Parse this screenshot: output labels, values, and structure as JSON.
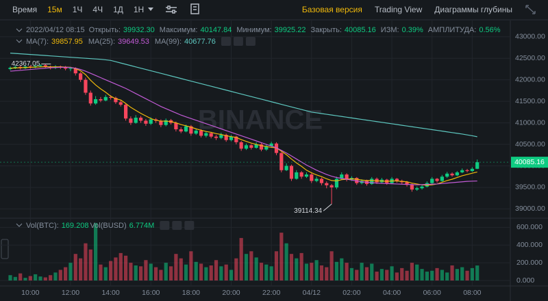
{
  "toolbar": {
    "intervals": [
      "Время",
      "15м",
      "1Ч",
      "4Ч",
      "1Д",
      "1Н"
    ],
    "views": [
      "Базовая версия",
      "Trading View",
      "Диаграммы глубины"
    ]
  },
  "chart_data": {
    "type": "candlestick",
    "header": {
      "date": "2022/04/12 08:15",
      "fields": [
        {
          "label": "Открыть:",
          "value": "39932.30"
        },
        {
          "label": "Максимум:",
          "value": "40147.84"
        },
        {
          "label": "Минимум:",
          "value": "39925.22"
        },
        {
          "label": "Закрыть:",
          "value": "40085.16"
        },
        {
          "label": "ИЗМ:",
          "value": "0.39%"
        },
        {
          "label": "АМПЛИТУДА:",
          "value": "0.56%"
        }
      ]
    },
    "watermark": "BINANCE",
    "categories": [
      null,
      null,
      null,
      null,
      "10:00",
      null,
      null,
      null,
      null,
      null,
      null,
      null,
      "12:00",
      null,
      null,
      null,
      null,
      null,
      null,
      null,
      "14:00",
      null,
      null,
      null,
      null,
      null,
      null,
      null,
      "16:00",
      null,
      null,
      null,
      null,
      null,
      null,
      null,
      "18:00",
      null,
      null,
      null,
      null,
      null,
      null,
      null,
      "20:00",
      null,
      null,
      null,
      null,
      null,
      null,
      null,
      "22:00",
      null,
      null,
      null,
      null,
      null,
      null,
      null,
      "04/12",
      null,
      null,
      null,
      null,
      null,
      null,
      null,
      "02:00",
      null,
      null,
      null,
      null,
      null,
      null,
      null,
      "04:00",
      null,
      null,
      null,
      null,
      null,
      null,
      null,
      "06:00",
      null,
      null,
      null,
      null,
      null,
      null,
      null,
      "08:00",
      null
    ],
    "open": [
      42250,
      42280,
      42300,
      42270,
      42310,
      42290,
      42320,
      42340,
      42300,
      42280,
      42310,
      42290,
      42260,
      42270,
      42150,
      42000,
      41700,
      41450,
      41550,
      41520,
      41600,
      41580,
      41480,
      41420,
      41100,
      41000,
      41120,
      41050,
      40980,
      41080,
      41050,
      40950,
      41060,
      41000,
      40850,
      40800,
      40920,
      40750,
      40820,
      40700,
      40760,
      40680,
      40650,
      40720,
      40600,
      40680,
      40550,
      40400,
      40480,
      40420,
      40500,
      40380,
      40460,
      40520,
      40300,
      39900,
      40000,
      39700,
      39850,
      39750,
      39800,
      39650,
      39700,
      39600,
      39550,
      39500,
      39700,
      39800,
      39680,
      39720,
      39600,
      39650,
      39580,
      39700,
      39620,
      39680,
      39600,
      39700,
      39650,
      39620,
      39560,
      39450,
      39480,
      39520,
      39600,
      39700,
      39650,
      39750,
      39820,
      39780,
      39850,
      39900,
      39880,
      39932.3
    ],
    "high": [
      42310,
      42330,
      42330,
      42340,
      42340,
      42350,
      42360,
      42367.05,
      42330,
      42340,
      42330,
      42320,
      42300,
      42290,
      42180,
      42050,
      41750,
      41620,
      41600,
      41650,
      41640,
      41610,
      41520,
      41450,
      41150,
      41180,
      41160,
      41090,
      41130,
      41110,
      41080,
      41100,
      41090,
      41030,
      40900,
      40960,
      40950,
      40870,
      40850,
      40800,
      40790,
      40720,
      40770,
      40750,
      40720,
      40700,
      40580,
      40520,
      40510,
      40550,
      40530,
      40500,
      40560,
      40550,
      40320,
      40060,
      40030,
      39900,
      39880,
      39850,
      39830,
      39750,
      39730,
      39640,
      39580,
      39750,
      39850,
      39830,
      39760,
      39740,
      39690,
      39680,
      39740,
      39730,
      39720,
      39700,
      39740,
      39720,
      39680,
      39650,
      39590,
      39520,
      39560,
      39640,
      39740,
      39720,
      39790,
      39860,
      39850,
      39880,
      39940,
      39930,
      39970,
      40147.84
    ],
    "low": [
      42220,
      42250,
      42240,
      42250,
      42260,
      42270,
      42290,
      42270,
      42240,
      42250,
      42250,
      42220,
      42200,
      42100,
      41950,
      41650,
      41400,
      41420,
      41480,
      41500,
      41540,
      41440,
      41380,
      41050,
      40950,
      40980,
      41000,
      40930,
      40950,
      41000,
      40900,
      40920,
      40960,
      40800,
      40760,
      40780,
      40700,
      40720,
      40660,
      40660,
      40640,
      40600,
      40620,
      40560,
      40570,
      40500,
      40350,
      40370,
      40380,
      40400,
      40340,
      40350,
      40430,
      40250,
      39850,
      39880,
      39650,
      39680,
      39700,
      39720,
      39600,
      39620,
      39550,
      39480,
      39114.34,
      39460,
      39680,
      39640,
      39650,
      39560,
      39570,
      39540,
      39560,
      39580,
      39600,
      39560,
      39580,
      39610,
      39580,
      39520,
      39400,
      39420,
      39450,
      39500,
      39580,
      39610,
      39630,
      39720,
      39750,
      39760,
      39830,
      39850,
      39860,
      39925.22
    ],
    "close": [
      42280,
      42300,
      42270,
      42310,
      42290,
      42320,
      42340,
      42300,
      42280,
      42310,
      42290,
      42260,
      42270,
      42150,
      42000,
      41700,
      41450,
      41550,
      41520,
      41600,
      41580,
      41480,
      41420,
      41100,
      41000,
      41120,
      41050,
      40980,
      41080,
      41050,
      40950,
      41060,
      41000,
      40850,
      40800,
      40920,
      40750,
      40820,
      40700,
      40760,
      40680,
      40650,
      40720,
      40600,
      40680,
      40550,
      40400,
      40480,
      40420,
      40500,
      40380,
      40460,
      40520,
      40300,
      39900,
      40000,
      39700,
      39850,
      39750,
      39800,
      39650,
      39700,
      39600,
      39550,
      39500,
      39700,
      39800,
      39680,
      39720,
      39600,
      39650,
      39580,
      39700,
      39620,
      39680,
      39600,
      39700,
      39650,
      39620,
      39560,
      39450,
      39480,
      39520,
      39600,
      39700,
      39650,
      39750,
      39820,
      39780,
      39850,
      39900,
      39880,
      39932.3,
      40085.16
    ],
    "volume": [
      60,
      40,
      80,
      30,
      50,
      70,
      45,
      35,
      60,
      90,
      120,
      150,
      200,
      300,
      250,
      420,
      350,
      650,
      180,
      150,
      220,
      260,
      310,
      280,
      200,
      170,
      160,
      230,
      190,
      150,
      120,
      200,
      160,
      300,
      250,
      180,
      330,
      210,
      190,
      150,
      170,
      230,
      160,
      180,
      120,
      250,
      480,
      300,
      330,
      260,
      200,
      180,
      160,
      330,
      540,
      420,
      300,
      250,
      310,
      190,
      200,
      230,
      170,
      150,
      330,
      210,
      250,
      200,
      140,
      120,
      200,
      150,
      190,
      100,
      130,
      120,
      160,
      90,
      140,
      110,
      200,
      180,
      130,
      100,
      110,
      140,
      120,
      90,
      170,
      130,
      150,
      110,
      140,
      169.208
    ],
    "volume_header": {
      "label": "Vol(BTC):",
      "value": "169.208",
      "label2": "Vol(BUSD)",
      "value2": "6.774M"
    },
    "series": [
      {
        "name": "MA(7):",
        "color": "#f0b90b",
        "values": [
          42270,
          42275,
          42280,
          42285,
          42290,
          42295,
          42300,
          42305,
          42300,
          42300,
          42300,
          42295,
          42290,
          42260,
          42210,
          42120,
          41990,
          41880,
          41790,
          41710,
          41620,
          41560,
          41530,
          41450,
          41360,
          41290,
          41220,
          41160,
          41100,
          41060,
          41040,
          41040,
          41030,
          41000,
          40960,
          40930,
          40900,
          40860,
          40830,
          40800,
          40780,
          40750,
          40730,
          40700,
          40680,
          40660,
          40610,
          40570,
          40530,
          40500,
          40470,
          40450,
          40430,
          40420,
          40340,
          40260,
          40160,
          40070,
          39990,
          39900,
          39840,
          39790,
          39750,
          39700,
          39660,
          39650,
          39680,
          39690,
          39700,
          39690,
          39670,
          39660,
          39660,
          39650,
          39650,
          39640,
          39650,
          39650,
          39640,
          39630,
          39600,
          39580,
          39560,
          39550,
          39560,
          39580,
          39620,
          39660,
          39690,
          39730,
          39770,
          39800,
          39830,
          39857.95
        ]
      },
      {
        "name": "MA(25):",
        "color": "#c25bd6",
        "values": [
          42200,
          42210,
          42220,
          42230,
          42240,
          42250,
          42260,
          42270,
          42280,
          42285,
          42290,
          42290,
          42285,
          42270,
          42240,
          42200,
          42150,
          42100,
          42050,
          42000,
          41950,
          41900,
          41850,
          41800,
          41740,
          41680,
          41620,
          41560,
          41500,
          41440,
          41380,
          41330,
          41280,
          41230,
          41180,
          41140,
          41100,
          41060,
          41020,
          40980,
          40940,
          40900,
          40860,
          40820,
          40780,
          40740,
          40700,
          40660,
          40620,
          40580,
          40540,
          40500,
          40460,
          40420,
          40360,
          40300,
          40230,
          40160,
          40090,
          40020,
          39960,
          39900,
          39850,
          39800,
          39760,
          39730,
          39710,
          39690,
          39670,
          39650,
          39630,
          39620,
          39610,
          39600,
          39595,
          39590,
          39585,
          39580,
          39575,
          39570,
          39565,
          39560,
          39565,
          39570,
          39575,
          39580,
          39590,
          39600,
          39610,
          39620,
          39630,
          39640,
          39645,
          39649.53
        ]
      },
      {
        "name": "MA(99):",
        "color": "#5ec8c0",
        "values": [
          42620,
          42612,
          42604,
          42596,
          42588,
          42580,
          42572,
          42564,
          42556,
          42548,
          42540,
          42532,
          42524,
          42516,
          42508,
          42500,
          42492,
          42484,
          42476,
          42464,
          42450,
          42420,
          42390,
          42360,
          42330,
          42300,
          42270,
          42240,
          42210,
          42180,
          42150,
          42120,
          42090,
          42060,
          42030,
          42000,
          41970,
          41940,
          41910,
          41880,
          41850,
          41820,
          41790,
          41760,
          41730,
          41700,
          41670,
          41640,
          41610,
          41580,
          41550,
          41520,
          41490,
          41460,
          41430,
          41400,
          41370,
          41340,
          41310,
          41280,
          41250,
          41233,
          41216,
          41199,
          41182,
          41165,
          41148,
          41131,
          41114,
          41097,
          41080,
          41063,
          41046,
          41029,
          41012,
          40995,
          40978,
          40961,
          40944,
          40927,
          40910,
          40893,
          40876,
          40859,
          40842,
          40825,
          40808,
          40791,
          40774,
          40757,
          40740,
          40720,
          40700,
          40677.76
        ]
      }
    ],
    "up_color": "#0ecb81",
    "down_color": "#f6465d",
    "ylim": [
      38800,
      43250
    ],
    "yticks": [
      {
        "value": 39000,
        "label": "39000.00"
      },
      {
        "value": 39500,
        "label": "39500.00"
      },
      {
        "value": 40000,
        "label": "40000.00"
      },
      {
        "value": 40500,
        "label": "40500.00"
      },
      {
        "value": 41000,
        "label": "41000.00"
      },
      {
        "value": 41500,
        "label": "41500.00"
      },
      {
        "value": 42000,
        "label": "42000.00"
      },
      {
        "value": 42500,
        "label": "42500.00"
      },
      {
        "value": 43000,
        "label": "43000.00"
      }
    ],
    "vlim": [
      0,
      680
    ],
    "vticks": [
      {
        "value": 0,
        "label": "0.000"
      },
      {
        "value": 200,
        "label": "200.000"
      },
      {
        "value": 400,
        "label": "400.000"
      },
      {
        "value": 600,
        "label": "600.000"
      }
    ],
    "grid": true
  }
}
